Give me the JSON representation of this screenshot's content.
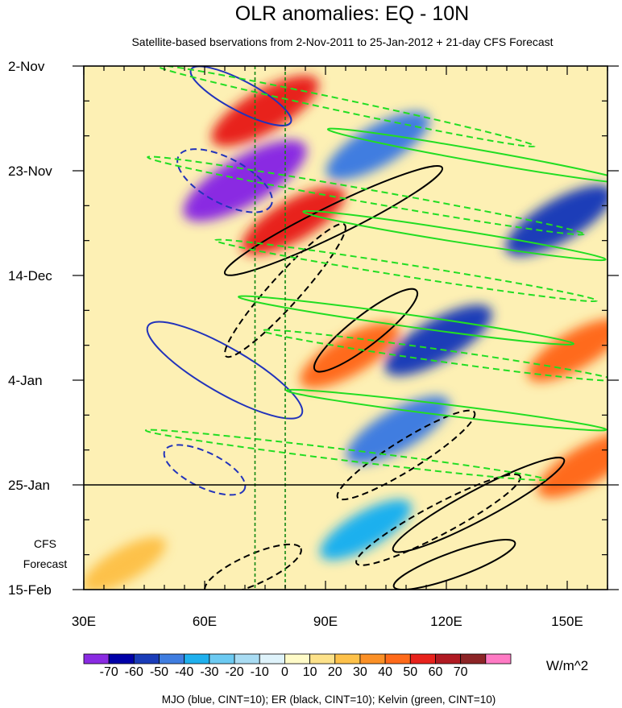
{
  "chart_data": {
    "type": "heatmap",
    "title": "OLR anomalies: EQ - 10N",
    "subtitle": "Satellite-based bservations from 2-Nov-2011 to 25-Jan-2012 + 21-day CFS Forecast",
    "xlabel": "",
    "ylabel": "",
    "x_range": [
      30,
      160
    ],
    "x_ticks": [
      {
        "value": 30,
        "label": "30E"
      },
      {
        "value": 60,
        "label": "60E"
      },
      {
        "value": 90,
        "label": "90E"
      },
      {
        "value": 120,
        "label": "120E"
      },
      {
        "value": 150,
        "label": "150E"
      }
    ],
    "y_range_days": [
      0,
      105
    ],
    "y_ticks": [
      {
        "value": 0,
        "label": "2-Nov"
      },
      {
        "value": 21,
        "label": "23-Nov"
      },
      {
        "value": 42,
        "label": "14-Dec"
      },
      {
        "value": 63,
        "label": "4-Jan"
      },
      {
        "value": 84,
        "label": "25-Jan"
      },
      {
        "value": 105,
        "label": "15-Feb"
      }
    ],
    "forecast_start_day": 84,
    "forecast_label_line1": "CFS",
    "forecast_label_line2": "Forecast",
    "reference_lon_lines": [
      72.5,
      80
    ],
    "colorbar": {
      "units": "W/m^2",
      "levels": [
        -70,
        -60,
        -50,
        -40,
        -30,
        -20,
        -10,
        0,
        10,
        20,
        30,
        40,
        50,
        60,
        70
      ],
      "labels": [
        "-70",
        "-60",
        "-50",
        "-40",
        "-30",
        "-20",
        "-10",
        "0",
        "10",
        "20",
        "30",
        "40",
        "50",
        "60",
        "70"
      ],
      "colors": [
        "#8a2be2",
        "#0000a8",
        "#1a3cb8",
        "#3f7de0",
        "#1fb0ee",
        "#6ccaf2",
        "#a9dcf3",
        "#dff3fb",
        "#fffbc8",
        "#fde28a",
        "#fdc14a",
        "#fb9026",
        "#ff6a1a",
        "#e8221c",
        "#b01a22",
        "#8c2426",
        "#ff7ac4"
      ]
    },
    "anomaly_features": [
      {
        "lon": 75,
        "day": 9,
        "value": 55
      },
      {
        "lon": 70,
        "day": 23,
        "value": -75
      },
      {
        "lon": 82,
        "day": 31,
        "value": 50
      },
      {
        "lon": 103,
        "day": 16,
        "value": -50
      },
      {
        "lon": 148,
        "day": 31,
        "value": -55
      },
      {
        "lon": 96,
        "day": 58,
        "value": 45
      },
      {
        "lon": 118,
        "day": 55,
        "value": -55
      },
      {
        "lon": 152,
        "day": 57,
        "value": 40
      },
      {
        "lon": 108,
        "day": 73,
        "value": -50
      },
      {
        "lon": 155,
        "day": 80,
        "value": 45
      },
      {
        "lon": 100,
        "day": 93,
        "value": -35
      },
      {
        "lon": 40,
        "day": 100,
        "value": 25
      }
    ],
    "legend_footnote": "MJO (blue, CINT=10); ER (black, CINT=10); Kelvin (green, CINT=10)",
    "series": [
      {
        "name": "MJO",
        "color": "#2233bb",
        "contours": [
          {
            "lon": 65,
            "day": 23,
            "rx": 13,
            "ry": 4.5,
            "angle": 28,
            "sign": "negative"
          },
          {
            "lon": 69,
            "day": 6,
            "rx": 14,
            "ry": 3,
            "angle": 28,
            "sign": "positive"
          },
          {
            "lon": 65,
            "day": 61,
            "rx": 22,
            "ry": 4.5,
            "angle": 30,
            "sign": "positive"
          },
          {
            "lon": 60,
            "day": 81,
            "rx": 11,
            "ry": 3.5,
            "angle": 26,
            "sign": "negative"
          }
        ]
      },
      {
        "name": "ER",
        "color": "#000000",
        "contours": [
          {
            "lon": 80,
            "day": 45,
            "rx": 22,
            "ry": 3,
            "angle": -48,
            "sign": "negative"
          },
          {
            "lon": 110,
            "day": 78,
            "rx": 20,
            "ry": 3,
            "angle": -32,
            "sign": "negative"
          },
          {
            "lon": 118,
            "day": 91,
            "rx": 23,
            "ry": 3,
            "angle": -28,
            "sign": "negative"
          },
          {
            "lon": 72,
            "day": 101,
            "rx": 13,
            "ry": 3,
            "angle": -24,
            "sign": "negative"
          },
          {
            "lon": 100,
            "day": 53,
            "rx": 16,
            "ry": 3,
            "angle": -38,
            "sign": "positive"
          },
          {
            "lon": 128,
            "day": 88,
            "rx": 24,
            "ry": 3,
            "angle": -28,
            "sign": "positive"
          },
          {
            "lon": 122,
            "day": 100,
            "rx": 16,
            "ry": 2.5,
            "angle": -20,
            "sign": "positive"
          },
          {
            "lon": 92,
            "day": 31,
            "rx": 30,
            "ry": 3,
            "angle": -26,
            "sign": "positive"
          }
        ]
      },
      {
        "name": "Kelvin",
        "color": "#22dd22",
        "contours": [
          {
            "lon": 95,
            "day": 8,
            "rx": 48,
            "ry": 1.2,
            "angle": 12,
            "sign": "negative"
          },
          {
            "lon": 100,
            "day": 26,
            "rx": 55,
            "ry": 1.3,
            "angle": 10,
            "sign": "negative"
          },
          {
            "lon": 110,
            "day": 41,
            "rx": 48,
            "ry": 1.2,
            "angle": 9,
            "sign": "negative"
          },
          {
            "lon": 118,
            "day": 58,
            "rx": 44,
            "ry": 1.2,
            "angle": 8,
            "sign": "negative"
          },
          {
            "lon": 95,
            "day": 78,
            "rx": 50,
            "ry": 1.1,
            "angle": 7,
            "sign": "negative"
          },
          {
            "lon": 128,
            "day": 18,
            "rx": 38,
            "ry": 1.2,
            "angle": 10,
            "sign": "positive"
          },
          {
            "lon": 122,
            "day": 34,
            "rx": 38,
            "ry": 1.2,
            "angle": 9,
            "sign": "positive"
          },
          {
            "lon": 110,
            "day": 51,
            "rx": 42,
            "ry": 1.2,
            "angle": 8,
            "sign": "positive"
          },
          {
            "lon": 120,
            "day": 69,
            "rx": 40,
            "ry": 1.1,
            "angle": 7,
            "sign": "positive"
          }
        ]
      }
    ]
  }
}
